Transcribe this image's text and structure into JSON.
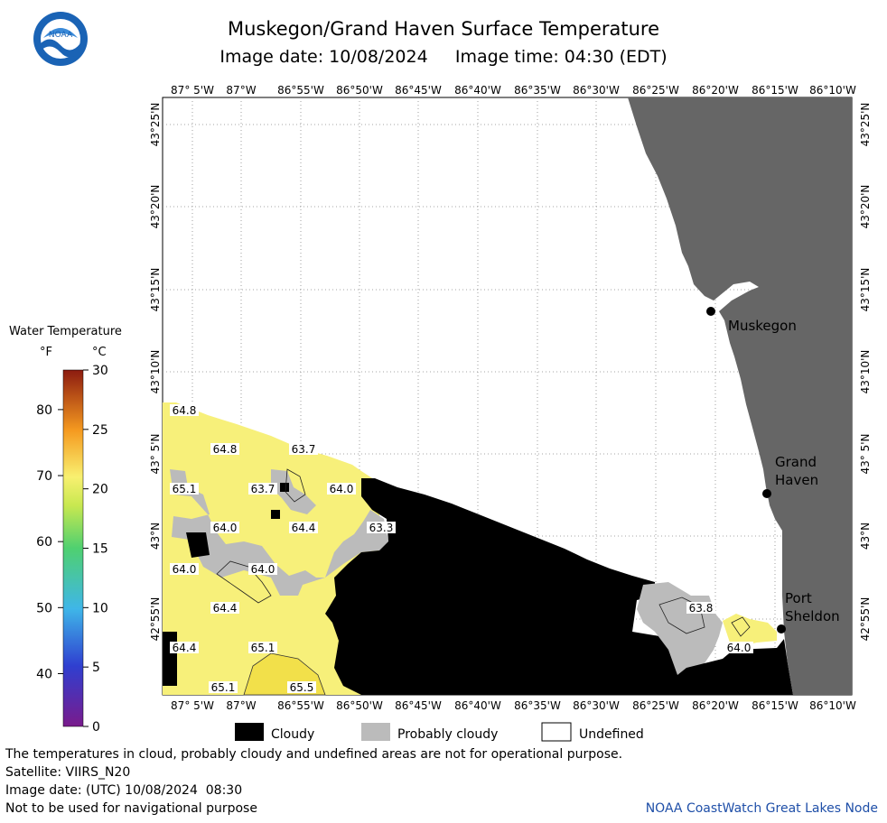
{
  "header": {
    "title": "Muskegon/Grand Haven Surface Temperature",
    "subtitle": "Image date: 10/08/2024     Image time: 04:30 (EDT)",
    "logo_text": "NOAA"
  },
  "map": {
    "lon_labels": [
      "87° 5'W",
      "87°W",
      "86°55'W",
      "86°50'W",
      "86°45'W",
      "86°40'W",
      "86°35'W",
      "86°30'W",
      "86°25'W",
      "86°20'W",
      "86°15'W",
      "86°10'W"
    ],
    "lat_labels": [
      "43°25'N",
      "43°20'N",
      "43°15'N",
      "43°10'N",
      "43° 5'N",
      "43°N",
      "42°55'N"
    ],
    "places": [
      "Muskegon",
      "Grand Haven",
      "Port Sheldon"
    ],
    "place_lines": [
      [
        "Muskegon"
      ],
      [
        "Grand",
        "Haven"
      ],
      [
        "Port",
        "Sheldon"
      ]
    ],
    "temp_labels": [
      "64.8",
      "64.8",
      "63.7",
      "65.1",
      "63.7",
      "64.0",
      "64.0",
      "64.4",
      "63.3",
      "64.0",
      "64.0",
      "64.4",
      "63.8",
      "64.4",
      "65.1",
      "64.0",
      "65.1",
      "65.5"
    ],
    "colors": {
      "land": "#666666",
      "cloudy": "#000000",
      "probably_cloudy": "#bbbbbb",
      "undefined": "#ffffff",
      "water_64": "#f7f07a",
      "water_65": "#f2e872"
    }
  },
  "legend": {
    "title": "Water Temperature",
    "unit_f": "°F",
    "unit_c": "°C",
    "f_ticks": [
      "80",
      "70",
      "60",
      "50",
      "40"
    ],
    "c_ticks": [
      "30",
      "25",
      "20",
      "15",
      "10",
      "5",
      "0"
    ],
    "f_range": [
      32,
      86
    ],
    "c_range": [
      0,
      30
    ],
    "items": [
      "Cloudy",
      "Probably cloudy",
      "Undefined"
    ]
  },
  "footer": {
    "note": "The temperatures in cloud, probably cloudy and undefined areas are not for operational purpose.",
    "satellite": "Satellite: VIIRS_N20",
    "utc": "Image date: (UTC) 10/08/2024  08:30",
    "nav": "Not to be used for navigational purpose",
    "credit": "NOAA CoastWatch Great Lakes Node"
  }
}
